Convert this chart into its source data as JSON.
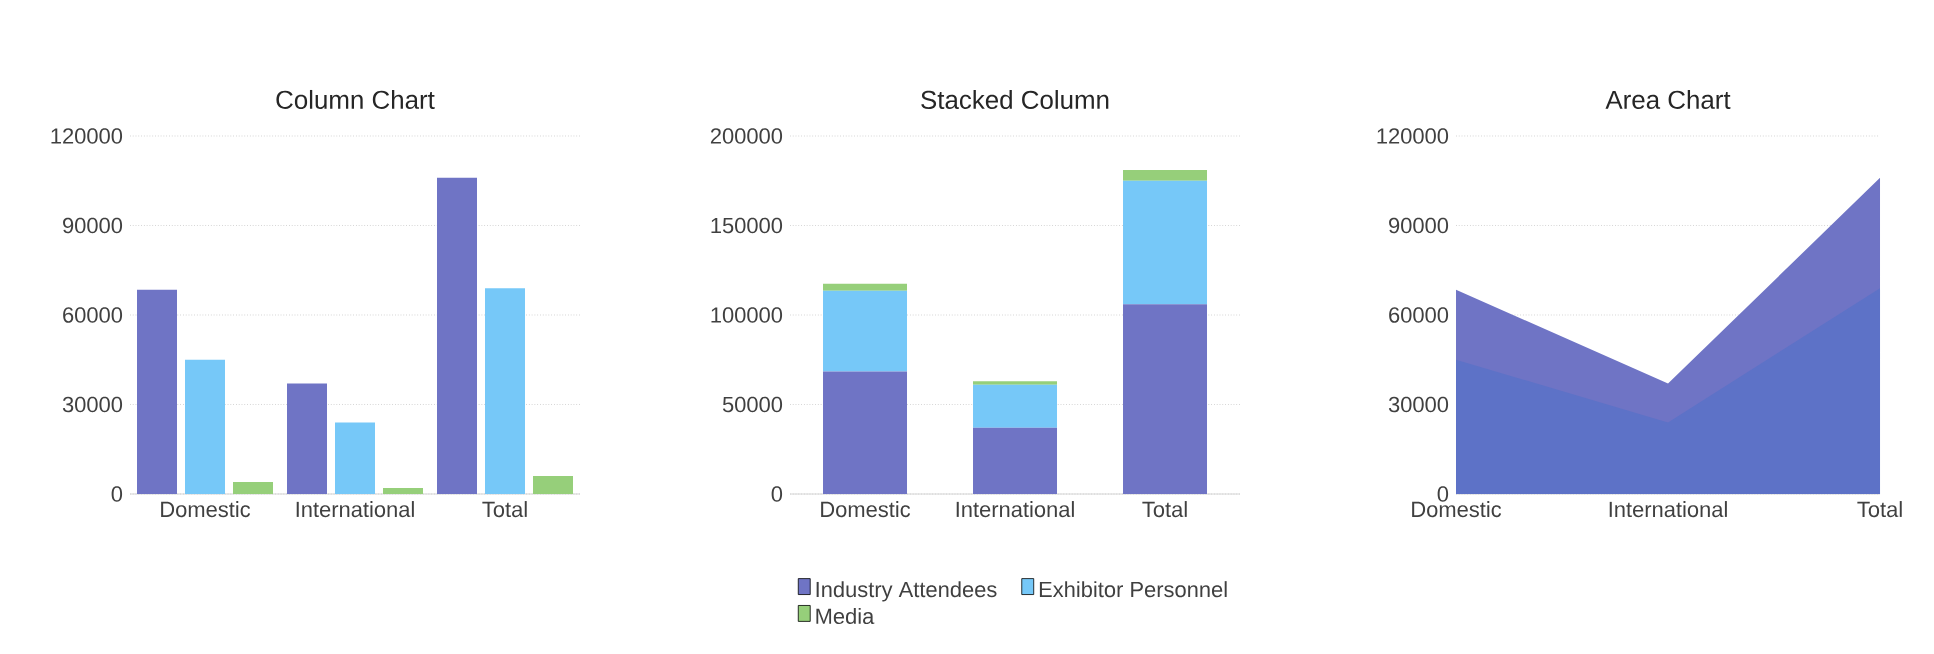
{
  "chart_data": [
    {
      "type": "bar",
      "title": "Column Chart",
      "categories": [
        "Domestic",
        "International",
        "Total"
      ],
      "ylim": [
        0,
        120000
      ],
      "yticks": [
        0,
        30000,
        60000,
        90000,
        120000
      ],
      "grid": "y",
      "series": [
        {
          "color": "#6f74c5",
          "values": [
            68500,
            37000,
            106000
          ]
        },
        {
          "color": "#76c8f8",
          "values": [
            45000,
            24000,
            69000
          ]
        },
        {
          "color": "#96cf7a",
          "values": [
            4000,
            2000,
            6000
          ]
        }
      ]
    },
    {
      "type": "bar",
      "title": "Stacked Column",
      "stacked": true,
      "categories": [
        "Domestic",
        "International",
        "Total"
      ],
      "ylim": [
        0,
        200000
      ],
      "yticks": [
        0,
        50000,
        100000,
        150000,
        200000
      ],
      "grid": "y",
      "legend": "bottom",
      "series": [
        {
          "name": "Industry Attendees",
          "color": "#6f74c5",
          "values": [
            68500,
            37000,
            106000
          ]
        },
        {
          "name": "Exhibitor Personnel",
          "color": "#76c8f8",
          "values": [
            45000,
            24000,
            69000
          ]
        },
        {
          "name": "Media",
          "color": "#96cf7a",
          "values": [
            4000,
            2000,
            6000
          ]
        }
      ]
    },
    {
      "type": "area",
      "title": "Area Chart",
      "categories": [
        "Domestic",
        "International",
        "Total"
      ],
      "ylim": [
        0,
        120000
      ],
      "yticks": [
        0,
        30000,
        60000,
        90000,
        120000
      ],
      "grid": "y",
      "series": [
        {
          "color": "#6f74c5",
          "values": [
            68500,
            37000,
            106000
          ]
        },
        {
          "color": "#5d72c7",
          "values": [
            45000,
            24000,
            69000
          ]
        }
      ]
    }
  ]
}
